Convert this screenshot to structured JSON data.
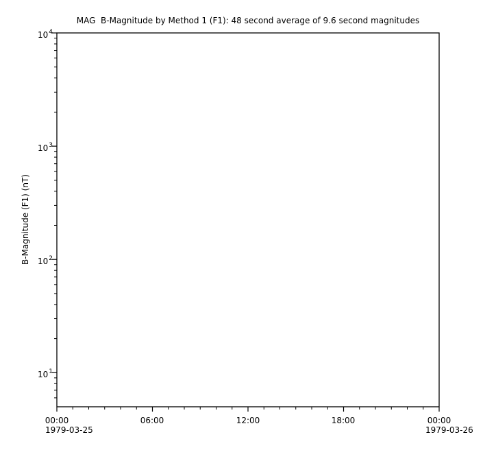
{
  "figure": {
    "background": "#ffffff",
    "axis_color": "#000000",
    "text_color": "#000000"
  },
  "chart_data": {
    "type": "line",
    "title": "MAG  B-Magnitude by Method 1 (F1): 48 second average of 9.6 second magnitudes",
    "xlabel": "",
    "ylabel": "B-Magnitude (F1) (nT)",
    "grid": false,
    "legend": null,
    "series": [],
    "x_axis": {
      "kind": "time",
      "range_hours": [
        0,
        24
      ],
      "major_tick_hours": [
        0,
        6,
        12,
        18,
        24
      ],
      "major_tick_labels": [
        "00:00",
        "06:00",
        "12:00",
        "18:00",
        "00:00"
      ],
      "minor_tick_interval_hours": 1,
      "start_date": "1979-03-25",
      "end_date": "1979-03-26"
    },
    "y_axis": {
      "scale": "log",
      "range": [
        5,
        10000
      ],
      "major_ticks": [
        10,
        100,
        1000,
        10000
      ],
      "major_tick_labels": [
        {
          "base": "10",
          "exp": "1"
        },
        {
          "base": "10",
          "exp": "2"
        },
        {
          "base": "10",
          "exp": "3"
        },
        {
          "base": "10",
          "exp": "4"
        }
      ],
      "minor_tick_multiples": [
        2,
        3,
        4,
        5,
        6,
        7,
        8,
        9
      ]
    }
  }
}
